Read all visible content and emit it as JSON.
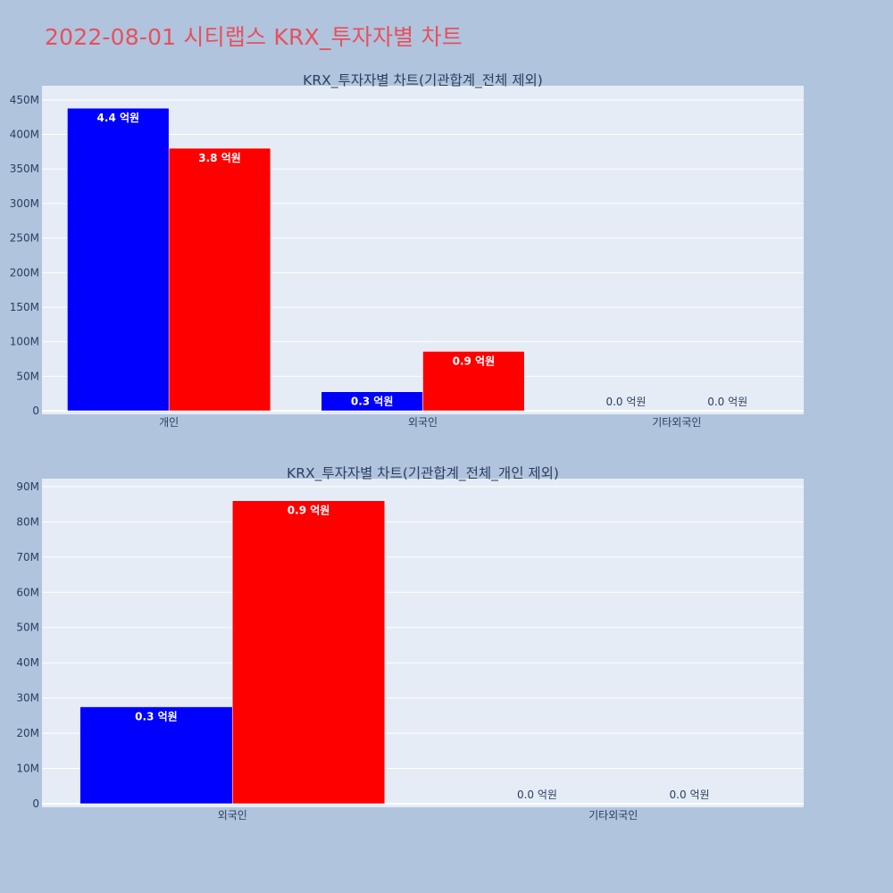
{
  "page": {
    "title": "2022-08-01 시티랩스 KRX_투자자별 차트"
  },
  "colors": {
    "buy": "#0000ff",
    "sell": "#ff0000",
    "plot_bg": "#e5ecf6",
    "page_bg": "#b0c4de",
    "title": "#e8505b"
  },
  "chart_data": [
    {
      "type": "bar",
      "title": "KRX_투자자별 차트(기관합계_전체 제외)",
      "categories": [
        "개인",
        "외국인",
        "기타외국인"
      ],
      "series": [
        {
          "values": [
            438000000,
            27500000,
            0
          ],
          "labels": [
            "4.4 억원",
            "0.3 억원",
            "0.0 억원"
          ],
          "color": "#0000ff"
        },
        {
          "values": [
            380000000,
            86000000,
            0
          ],
          "labels": [
            "3.8 억원",
            "0.9 억원",
            "0.0 억원"
          ],
          "color": "#ff0000"
        }
      ],
      "ylim": [
        0,
        455000000
      ],
      "yticks": [
        0,
        50000000,
        100000000,
        150000000,
        200000000,
        250000000,
        300000000,
        350000000,
        400000000,
        450000000
      ],
      "ytick_labels": [
        "0",
        "50M",
        "100M",
        "150M",
        "200M",
        "250M",
        "300M",
        "350M",
        "400M",
        "450M"
      ],
      "grid": true,
      "legend": "none"
    },
    {
      "type": "bar",
      "title": "KRX_투자자별 차트(기관합계_전체_개인 제외)",
      "categories": [
        "외국인",
        "기타외국인"
      ],
      "series": [
        {
          "values": [
            27500000,
            0
          ],
          "labels": [
            "0.3 억원",
            "0.0 억원"
          ],
          "color": "#0000ff"
        },
        {
          "values": [
            86000000,
            0
          ],
          "labels": [
            "0.9 억원",
            "0.0 억원"
          ],
          "color": "#ff0000"
        }
      ],
      "ylim": [
        0,
        91000000
      ],
      "yticks": [
        0,
        10000000,
        20000000,
        30000000,
        40000000,
        50000000,
        60000000,
        70000000,
        80000000,
        90000000
      ],
      "ytick_labels": [
        "0",
        "10M",
        "20M",
        "30M",
        "40M",
        "50M",
        "60M",
        "70M",
        "80M",
        "90M"
      ],
      "grid": true,
      "legend": "none"
    }
  ]
}
